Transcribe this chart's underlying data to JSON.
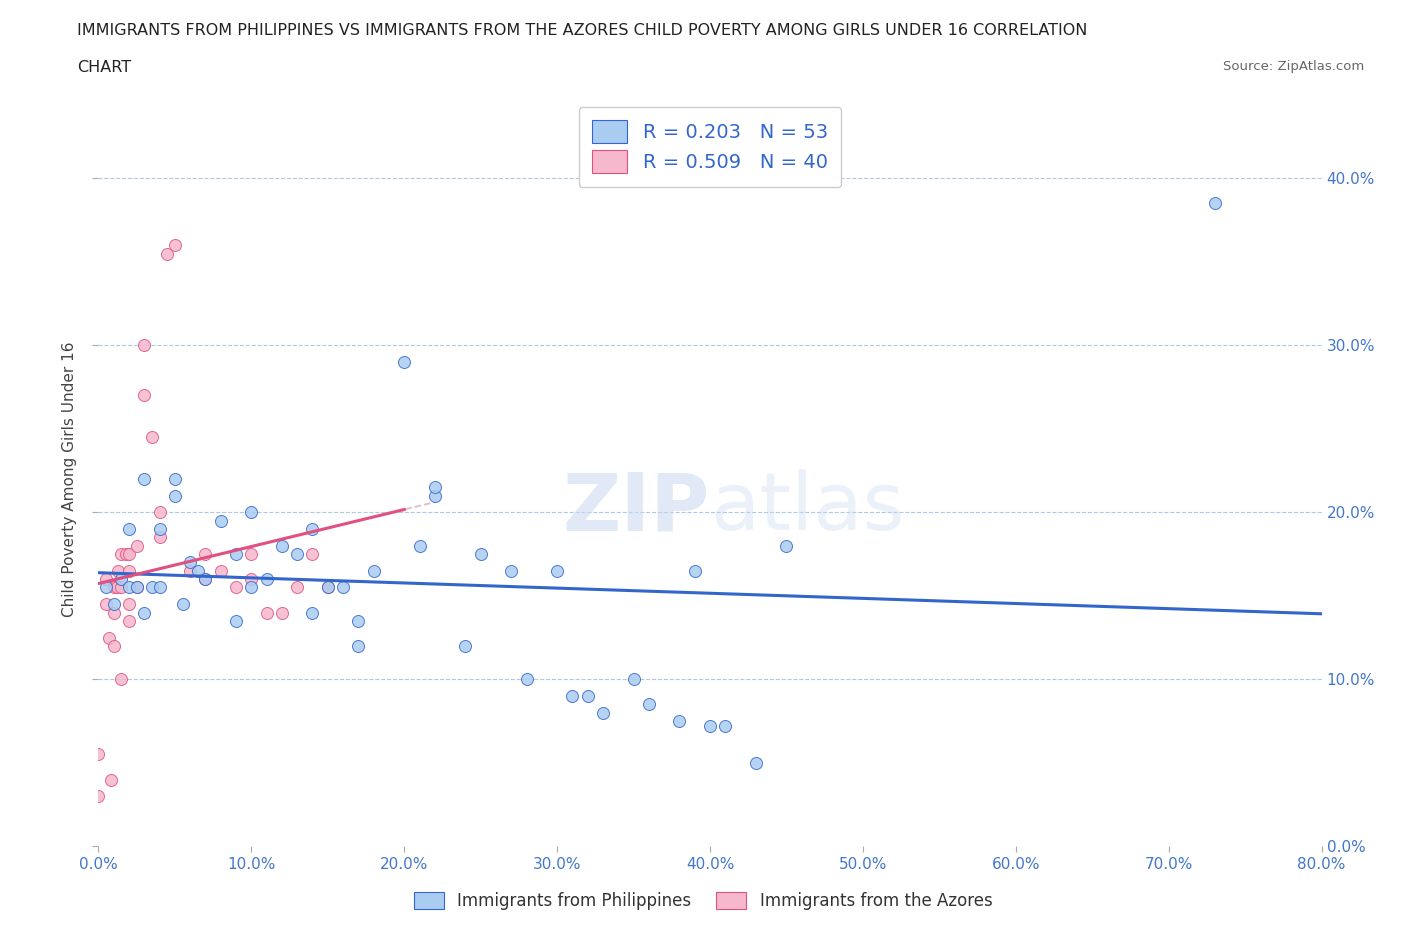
{
  "title_line1": "IMMIGRANTS FROM PHILIPPINES VS IMMIGRANTS FROM THE AZORES CHILD POVERTY AMONG GIRLS UNDER 16 CORRELATION",
  "title_line2": "CHART",
  "source": "Source: ZipAtlas.com",
  "ylabel": "Child Poverty Among Girls Under 16",
  "blue_label": "Immigrants from Philippines",
  "pink_label": "Immigrants from the Azores",
  "blue_R": 0.203,
  "blue_N": 53,
  "pink_R": 0.509,
  "pink_N": 40,
  "xlim": [
    0,
    0.8
  ],
  "ylim": [
    0,
    0.44
  ],
  "xticks": [
    0.0,
    0.1,
    0.2,
    0.3,
    0.4,
    0.5,
    0.6,
    0.7,
    0.8
  ],
  "yticks": [
    0.0,
    0.1,
    0.2,
    0.3,
    0.4
  ],
  "blue_color": "#aaccf0",
  "pink_color": "#f5b8cc",
  "blue_line_color": "#3366cc",
  "pink_line_color": "#e05080",
  "blue_points_x": [
    0.005,
    0.01,
    0.015,
    0.02,
    0.02,
    0.025,
    0.03,
    0.03,
    0.035,
    0.04,
    0.04,
    0.05,
    0.05,
    0.055,
    0.06,
    0.065,
    0.07,
    0.08,
    0.09,
    0.09,
    0.1,
    0.1,
    0.11,
    0.12,
    0.13,
    0.14,
    0.14,
    0.15,
    0.16,
    0.17,
    0.17,
    0.18,
    0.2,
    0.21,
    0.22,
    0.22,
    0.24,
    0.25,
    0.27,
    0.28,
    0.3,
    0.31,
    0.32,
    0.33,
    0.35,
    0.36,
    0.38,
    0.39,
    0.4,
    0.41,
    0.43,
    0.45,
    0.73
  ],
  "blue_points_y": [
    0.155,
    0.145,
    0.16,
    0.155,
    0.19,
    0.155,
    0.14,
    0.22,
    0.155,
    0.19,
    0.155,
    0.21,
    0.22,
    0.145,
    0.17,
    0.165,
    0.16,
    0.195,
    0.135,
    0.175,
    0.155,
    0.2,
    0.16,
    0.18,
    0.175,
    0.14,
    0.19,
    0.155,
    0.155,
    0.135,
    0.12,
    0.165,
    0.29,
    0.18,
    0.21,
    0.215,
    0.12,
    0.175,
    0.165,
    0.1,
    0.165,
    0.09,
    0.09,
    0.08,
    0.1,
    0.085,
    0.075,
    0.165,
    0.072,
    0.072,
    0.05,
    0.18,
    0.385
  ],
  "pink_points_x": [
    0.0,
    0.0,
    0.005,
    0.005,
    0.007,
    0.008,
    0.01,
    0.01,
    0.01,
    0.012,
    0.013,
    0.015,
    0.015,
    0.015,
    0.018,
    0.02,
    0.02,
    0.02,
    0.02,
    0.025,
    0.025,
    0.03,
    0.03,
    0.035,
    0.04,
    0.04,
    0.045,
    0.05,
    0.06,
    0.07,
    0.07,
    0.08,
    0.09,
    0.1,
    0.1,
    0.11,
    0.12,
    0.13,
    0.14,
    0.15
  ],
  "pink_points_y": [
    0.03,
    0.055,
    0.16,
    0.145,
    0.125,
    0.04,
    0.155,
    0.14,
    0.12,
    0.155,
    0.165,
    0.155,
    0.175,
    0.1,
    0.175,
    0.165,
    0.145,
    0.135,
    0.175,
    0.18,
    0.155,
    0.27,
    0.3,
    0.245,
    0.185,
    0.2,
    0.355,
    0.36,
    0.165,
    0.175,
    0.16,
    0.165,
    0.155,
    0.16,
    0.175,
    0.14,
    0.14,
    0.155,
    0.175,
    0.155
  ]
}
